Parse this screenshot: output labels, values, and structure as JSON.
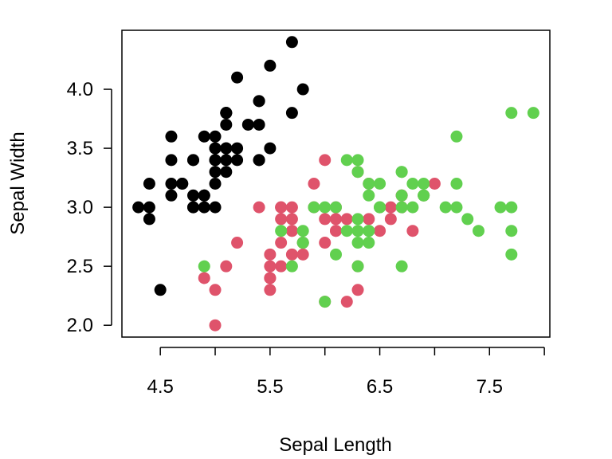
{
  "chart_data": {
    "type": "scatter",
    "title": "",
    "xlabel": "Sepal Length",
    "ylabel": "Sepal Width",
    "xlim": [
      4.15,
      8.05
    ],
    "ylim": [
      1.9,
      4.5
    ],
    "xticks": [
      4.5,
      5.5,
      6.5,
      7.5
    ],
    "xticks_minor": [
      5.0,
      6.0,
      7.0,
      8.0
    ],
    "yticks": [
      2.0,
      2.5,
      3.0,
      3.5,
      4.0
    ],
    "grid": false,
    "legend": "none",
    "series": [
      {
        "color": "#000000",
        "points": [
          [
            5.1,
            3.5
          ],
          [
            4.9,
            3.0
          ],
          [
            4.7,
            3.2
          ],
          [
            4.6,
            3.1
          ],
          [
            5.0,
            3.6
          ],
          [
            5.4,
            3.9
          ],
          [
            4.6,
            3.4
          ],
          [
            5.0,
            3.4
          ],
          [
            4.4,
            2.9
          ],
          [
            4.9,
            3.1
          ],
          [
            5.4,
            3.7
          ],
          [
            4.8,
            3.4
          ],
          [
            4.8,
            3.0
          ],
          [
            4.3,
            3.0
          ],
          [
            5.8,
            4.0
          ],
          [
            5.7,
            4.4
          ],
          [
            5.4,
            3.9
          ],
          [
            5.1,
            3.5
          ],
          [
            5.7,
            3.8
          ],
          [
            5.1,
            3.8
          ],
          [
            5.4,
            3.4
          ],
          [
            5.1,
            3.7
          ],
          [
            4.6,
            3.6
          ],
          [
            5.1,
            3.3
          ],
          [
            4.8,
            3.4
          ],
          [
            5.0,
            3.0
          ],
          [
            5.0,
            3.4
          ],
          [
            5.2,
            3.5
          ],
          [
            5.2,
            3.4
          ],
          [
            4.7,
            3.2
          ],
          [
            4.8,
            3.1
          ],
          [
            5.4,
            3.4
          ],
          [
            5.2,
            4.1
          ],
          [
            5.5,
            4.2
          ],
          [
            4.9,
            3.1
          ],
          [
            5.0,
            3.2
          ],
          [
            5.5,
            3.5
          ],
          [
            4.9,
            3.6
          ],
          [
            4.4,
            3.0
          ],
          [
            5.1,
            3.4
          ],
          [
            5.0,
            3.5
          ],
          [
            4.5,
            2.3
          ],
          [
            4.4,
            3.2
          ],
          [
            5.0,
            3.5
          ],
          [
            5.1,
            3.8
          ],
          [
            4.8,
            3.0
          ],
          [
            5.1,
            3.8
          ],
          [
            4.6,
            3.2
          ],
          [
            5.3,
            3.7
          ],
          [
            5.0,
            3.3
          ]
        ]
      },
      {
        "color": "#DF536B",
        "points": [
          [
            7.0,
            3.2
          ],
          [
            6.4,
            3.2
          ],
          [
            6.9,
            3.1
          ],
          [
            5.5,
            2.3
          ],
          [
            6.5,
            2.8
          ],
          [
            5.7,
            2.8
          ],
          [
            6.3,
            3.3
          ],
          [
            4.9,
            2.4
          ],
          [
            6.6,
            2.9
          ],
          [
            5.2,
            2.7
          ],
          [
            5.0,
            2.0
          ],
          [
            5.9,
            3.0
          ],
          [
            6.0,
            2.2
          ],
          [
            6.1,
            2.9
          ],
          [
            5.6,
            2.9
          ],
          [
            6.7,
            3.1
          ],
          [
            5.6,
            3.0
          ],
          [
            5.8,
            2.7
          ],
          [
            6.2,
            2.2
          ],
          [
            5.6,
            2.5
          ],
          [
            5.9,
            3.2
          ],
          [
            6.1,
            2.8
          ],
          [
            6.3,
            2.5
          ],
          [
            6.1,
            2.8
          ],
          [
            6.4,
            2.9
          ],
          [
            6.6,
            3.0
          ],
          [
            6.8,
            2.8
          ],
          [
            6.7,
            3.0
          ],
          [
            6.0,
            2.9
          ],
          [
            5.7,
            2.6
          ],
          [
            5.5,
            2.4
          ],
          [
            5.5,
            2.4
          ],
          [
            5.8,
            2.7
          ],
          [
            6.0,
            2.7
          ],
          [
            5.4,
            3.0
          ],
          [
            6.0,
            3.4
          ],
          [
            6.7,
            3.1
          ],
          [
            6.3,
            2.3
          ],
          [
            5.6,
            3.0
          ],
          [
            5.5,
            2.5
          ],
          [
            5.5,
            2.6
          ],
          [
            6.1,
            3.0
          ],
          [
            5.8,
            2.6
          ],
          [
            5.0,
            2.3
          ],
          [
            5.6,
            2.7
          ],
          [
            5.7,
            3.0
          ],
          [
            5.7,
            2.9
          ],
          [
            6.2,
            2.9
          ],
          [
            5.1,
            2.5
          ],
          [
            5.7,
            2.8
          ]
        ]
      },
      {
        "color": "#61D04F",
        "points": [
          [
            6.3,
            3.3
          ],
          [
            5.8,
            2.7
          ],
          [
            7.1,
            3.0
          ],
          [
            6.3,
            2.9
          ],
          [
            6.5,
            3.0
          ],
          [
            7.6,
            3.0
          ],
          [
            4.9,
            2.5
          ],
          [
            7.3,
            2.9
          ],
          [
            6.7,
            2.5
          ],
          [
            7.2,
            3.6
          ],
          [
            6.5,
            3.2
          ],
          [
            6.4,
            2.7
          ],
          [
            6.8,
            3.0
          ],
          [
            5.7,
            2.5
          ],
          [
            5.8,
            2.8
          ],
          [
            6.4,
            3.2
          ],
          [
            6.5,
            3.0
          ],
          [
            7.7,
            3.8
          ],
          [
            7.7,
            2.6
          ],
          [
            6.0,
            2.2
          ],
          [
            6.9,
            3.2
          ],
          [
            5.6,
            2.8
          ],
          [
            7.7,
            2.8
          ],
          [
            6.3,
            2.7
          ],
          [
            6.7,
            3.3
          ],
          [
            7.2,
            3.2
          ],
          [
            6.2,
            2.8
          ],
          [
            6.1,
            3.0
          ],
          [
            6.4,
            2.8
          ],
          [
            7.2,
            3.0
          ],
          [
            7.4,
            2.8
          ],
          [
            7.9,
            3.8
          ],
          [
            6.4,
            2.8
          ],
          [
            6.3,
            2.8
          ],
          [
            6.1,
            2.6
          ],
          [
            7.7,
            3.0
          ],
          [
            6.3,
            3.4
          ],
          [
            6.4,
            3.1
          ],
          [
            6.0,
            3.0
          ],
          [
            6.9,
            3.1
          ],
          [
            6.7,
            3.1
          ],
          [
            6.9,
            3.1
          ],
          [
            5.8,
            2.7
          ],
          [
            6.8,
            3.2
          ],
          [
            6.7,
            3.3
          ],
          [
            6.7,
            3.0
          ],
          [
            6.3,
            2.5
          ],
          [
            6.5,
            3.0
          ],
          [
            6.2,
            3.4
          ],
          [
            5.9,
            3.0
          ]
        ]
      }
    ]
  }
}
